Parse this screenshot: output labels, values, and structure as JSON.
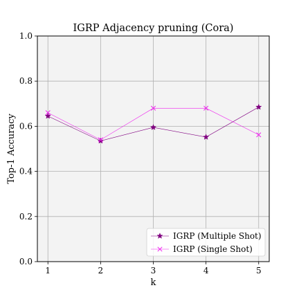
{
  "chart_data": {
    "type": "line",
    "title": "IGRP Adjacency pruning (Cora)",
    "xlabel": "k",
    "ylabel": "Top-1 Accuracy",
    "x": [
      1,
      2,
      3,
      4,
      5
    ],
    "xticks": [
      "1",
      "2",
      "3",
      "4",
      "5"
    ],
    "yticks": [
      "0.0",
      "0.2",
      "0.4",
      "0.6",
      "0.8",
      "1.0"
    ],
    "xlim": [
      0.8,
      5.2
    ],
    "ylim": [
      0.0,
      1.0
    ],
    "grid": true,
    "legend_position": "lower-right",
    "plot_background": "#f3f3f3",
    "series": [
      {
        "name": "IGRP (Multiple Shot)",
        "values": [
          0.645,
          0.535,
          0.595,
          0.552,
          0.685
        ],
        "color": "#800080",
        "marker": "star"
      },
      {
        "name": "IGRP (Single Shot)",
        "values": [
          0.66,
          0.54,
          0.68,
          0.68,
          0.562
        ],
        "color": "#ee22ee",
        "marker": "x"
      }
    ]
  }
}
